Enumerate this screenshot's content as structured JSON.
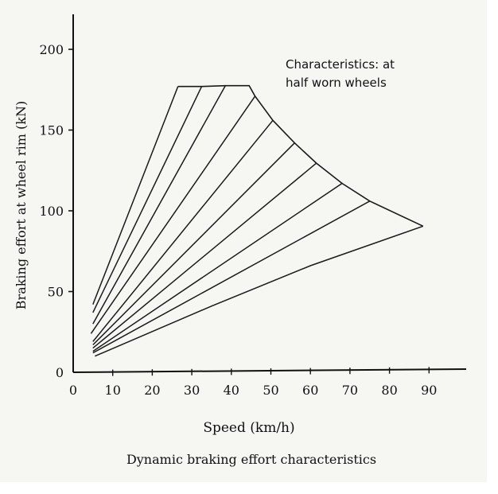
{
  "chart_data": {
    "type": "line",
    "title": "",
    "caption": "Dynamic braking effort characteristics",
    "xlabel": "Speed (km/h)",
    "ylabel": "Braking effort at wheel rim (kN)",
    "xlim": [
      0,
      100
    ],
    "ylim": [
      0,
      220
    ],
    "x_ticks": [
      0,
      10,
      20,
      30,
      40,
      50,
      60,
      70,
      80,
      90
    ],
    "y_ticks": [
      0,
      50,
      100,
      150,
      200
    ],
    "grid": false,
    "annotation": "Characteristics: at half worn wheels",
    "annotation_lines": [
      "Characteristics: at",
      "half worn wheels"
    ],
    "envelope": {
      "x": [
        26.5,
        32.5,
        38.5,
        44.5,
        46,
        50.5,
        56,
        61.5,
        68,
        75,
        88.5
      ],
      "y": [
        177,
        177,
        177.5,
        177.5,
        171,
        156,
        142,
        129.5,
        117,
        106,
        90.5
      ]
    },
    "series": [
      {
        "x": [
          5,
          26.5
        ],
        "y": [
          42,
          177
        ]
      },
      {
        "x": [
          5,
          32.5
        ],
        "y": [
          37,
          177
        ]
      },
      {
        "x": [
          5,
          38.5
        ],
        "y": [
          30,
          177.5
        ]
      },
      {
        "x": [
          4.5,
          46
        ],
        "y": [
          24,
          171
        ]
      },
      {
        "x": [
          5,
          50.5
        ],
        "y": [
          19,
          156
        ]
      },
      {
        "x": [
          5,
          56
        ],
        "y": [
          17,
          142
        ]
      },
      {
        "x": [
          5,
          61.5
        ],
        "y": [
          15,
          129.5
        ]
      },
      {
        "x": [
          5,
          68
        ],
        "y": [
          13,
          117
        ]
      },
      {
        "x": [
          5,
          75
        ],
        "y": [
          12,
          106
        ]
      },
      {
        "x": [
          5.5,
          35,
          60,
          88.5
        ],
        "y": [
          10,
          41,
          66,
          90.5
        ]
      }
    ],
    "colors": {
      "line": "#1a1a1a",
      "background": "#f6f6f3"
    }
  }
}
